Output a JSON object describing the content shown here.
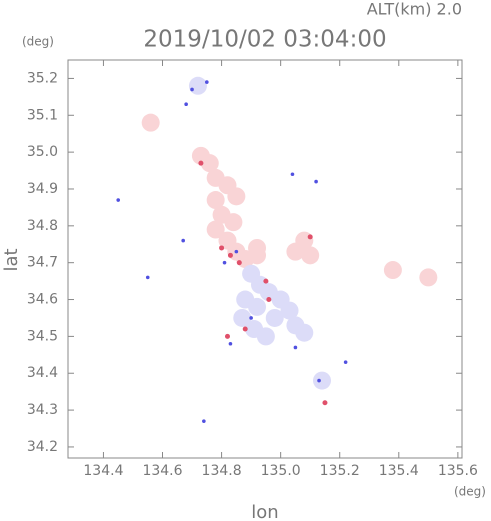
{
  "chart_data": {
    "type": "scatter",
    "title": "2019/10/02 03:04:00",
    "subtitle": "ALT(km) 2.0",
    "y_unit": "(deg)",
    "x_unit": "(deg)",
    "x_label": "lon",
    "y_label": "lat",
    "xlim": [
      134.28,
      135.614
    ],
    "ylim": [
      34.17,
      35.25
    ],
    "xticks": [
      134.4,
      134.6,
      134.8,
      {
        "value": 135.0,
        "label": "135.0"
      },
      135.2,
      135.4,
      135.6
    ],
    "yticks": [
      34.2,
      34.3,
      34.4,
      34.5,
      34.6,
      34.7,
      34.8,
      34.9,
      {
        "value": 35.0,
        "label": "35.0"
      },
      35.1,
      35.2
    ],
    "series": [
      {
        "color": "#f9d4d6",
        "x": [
          134.73,
          134.76,
          134.78,
          134.82,
          134.85,
          134.78,
          134.8,
          134.84,
          134.78,
          134.82,
          134.85,
          134.88,
          134.92,
          135.05,
          135.08,
          135.1,
          135.38,
          135.5,
          134.56,
          134.92
        ],
        "y": [
          34.99,
          34.97,
          34.93,
          34.91,
          34.88,
          34.87,
          34.83,
          34.81,
          34.79,
          34.76,
          34.73,
          34.71,
          34.74,
          34.73,
          34.76,
          34.72,
          34.68,
          34.66,
          35.08,
          34.72
        ]
      },
      {
        "color": "#dcdcf8",
        "x": [
          134.9,
          134.93,
          134.96,
          135.0,
          135.03,
          134.98,
          134.92,
          134.88,
          134.87,
          134.91,
          135.05,
          135.08,
          134.95,
          134.72,
          135.14
        ],
        "y": [
          34.67,
          34.64,
          34.62,
          34.6,
          34.57,
          34.55,
          34.58,
          34.6,
          34.55,
          34.52,
          34.53,
          34.51,
          34.5,
          35.18,
          34.38
        ]
      },
      {
        "color": "#e0506a",
        "x": [
          134.73,
          134.8,
          134.83,
          134.95,
          134.88,
          134.82,
          135.15,
          135.1,
          134.96,
          134.86
        ],
        "y": [
          34.97,
          34.74,
          34.72,
          34.65,
          34.52,
          34.5,
          34.32,
          34.77,
          34.6,
          34.7
        ]
      },
      {
        "color": "#5050e0",
        "x": [
          134.7,
          134.75,
          134.68,
          134.67,
          134.81,
          134.85,
          135.04,
          135.12,
          134.55,
          134.74,
          135.13,
          134.83,
          135.05,
          134.9,
          134.45,
          135.22
        ],
        "y": [
          35.17,
          35.19,
          35.13,
          34.76,
          34.7,
          34.73,
          34.94,
          34.92,
          34.66,
          34.27,
          34.38,
          34.48,
          34.47,
          34.55,
          34.87,
          34.43
        ]
      }
    ]
  }
}
